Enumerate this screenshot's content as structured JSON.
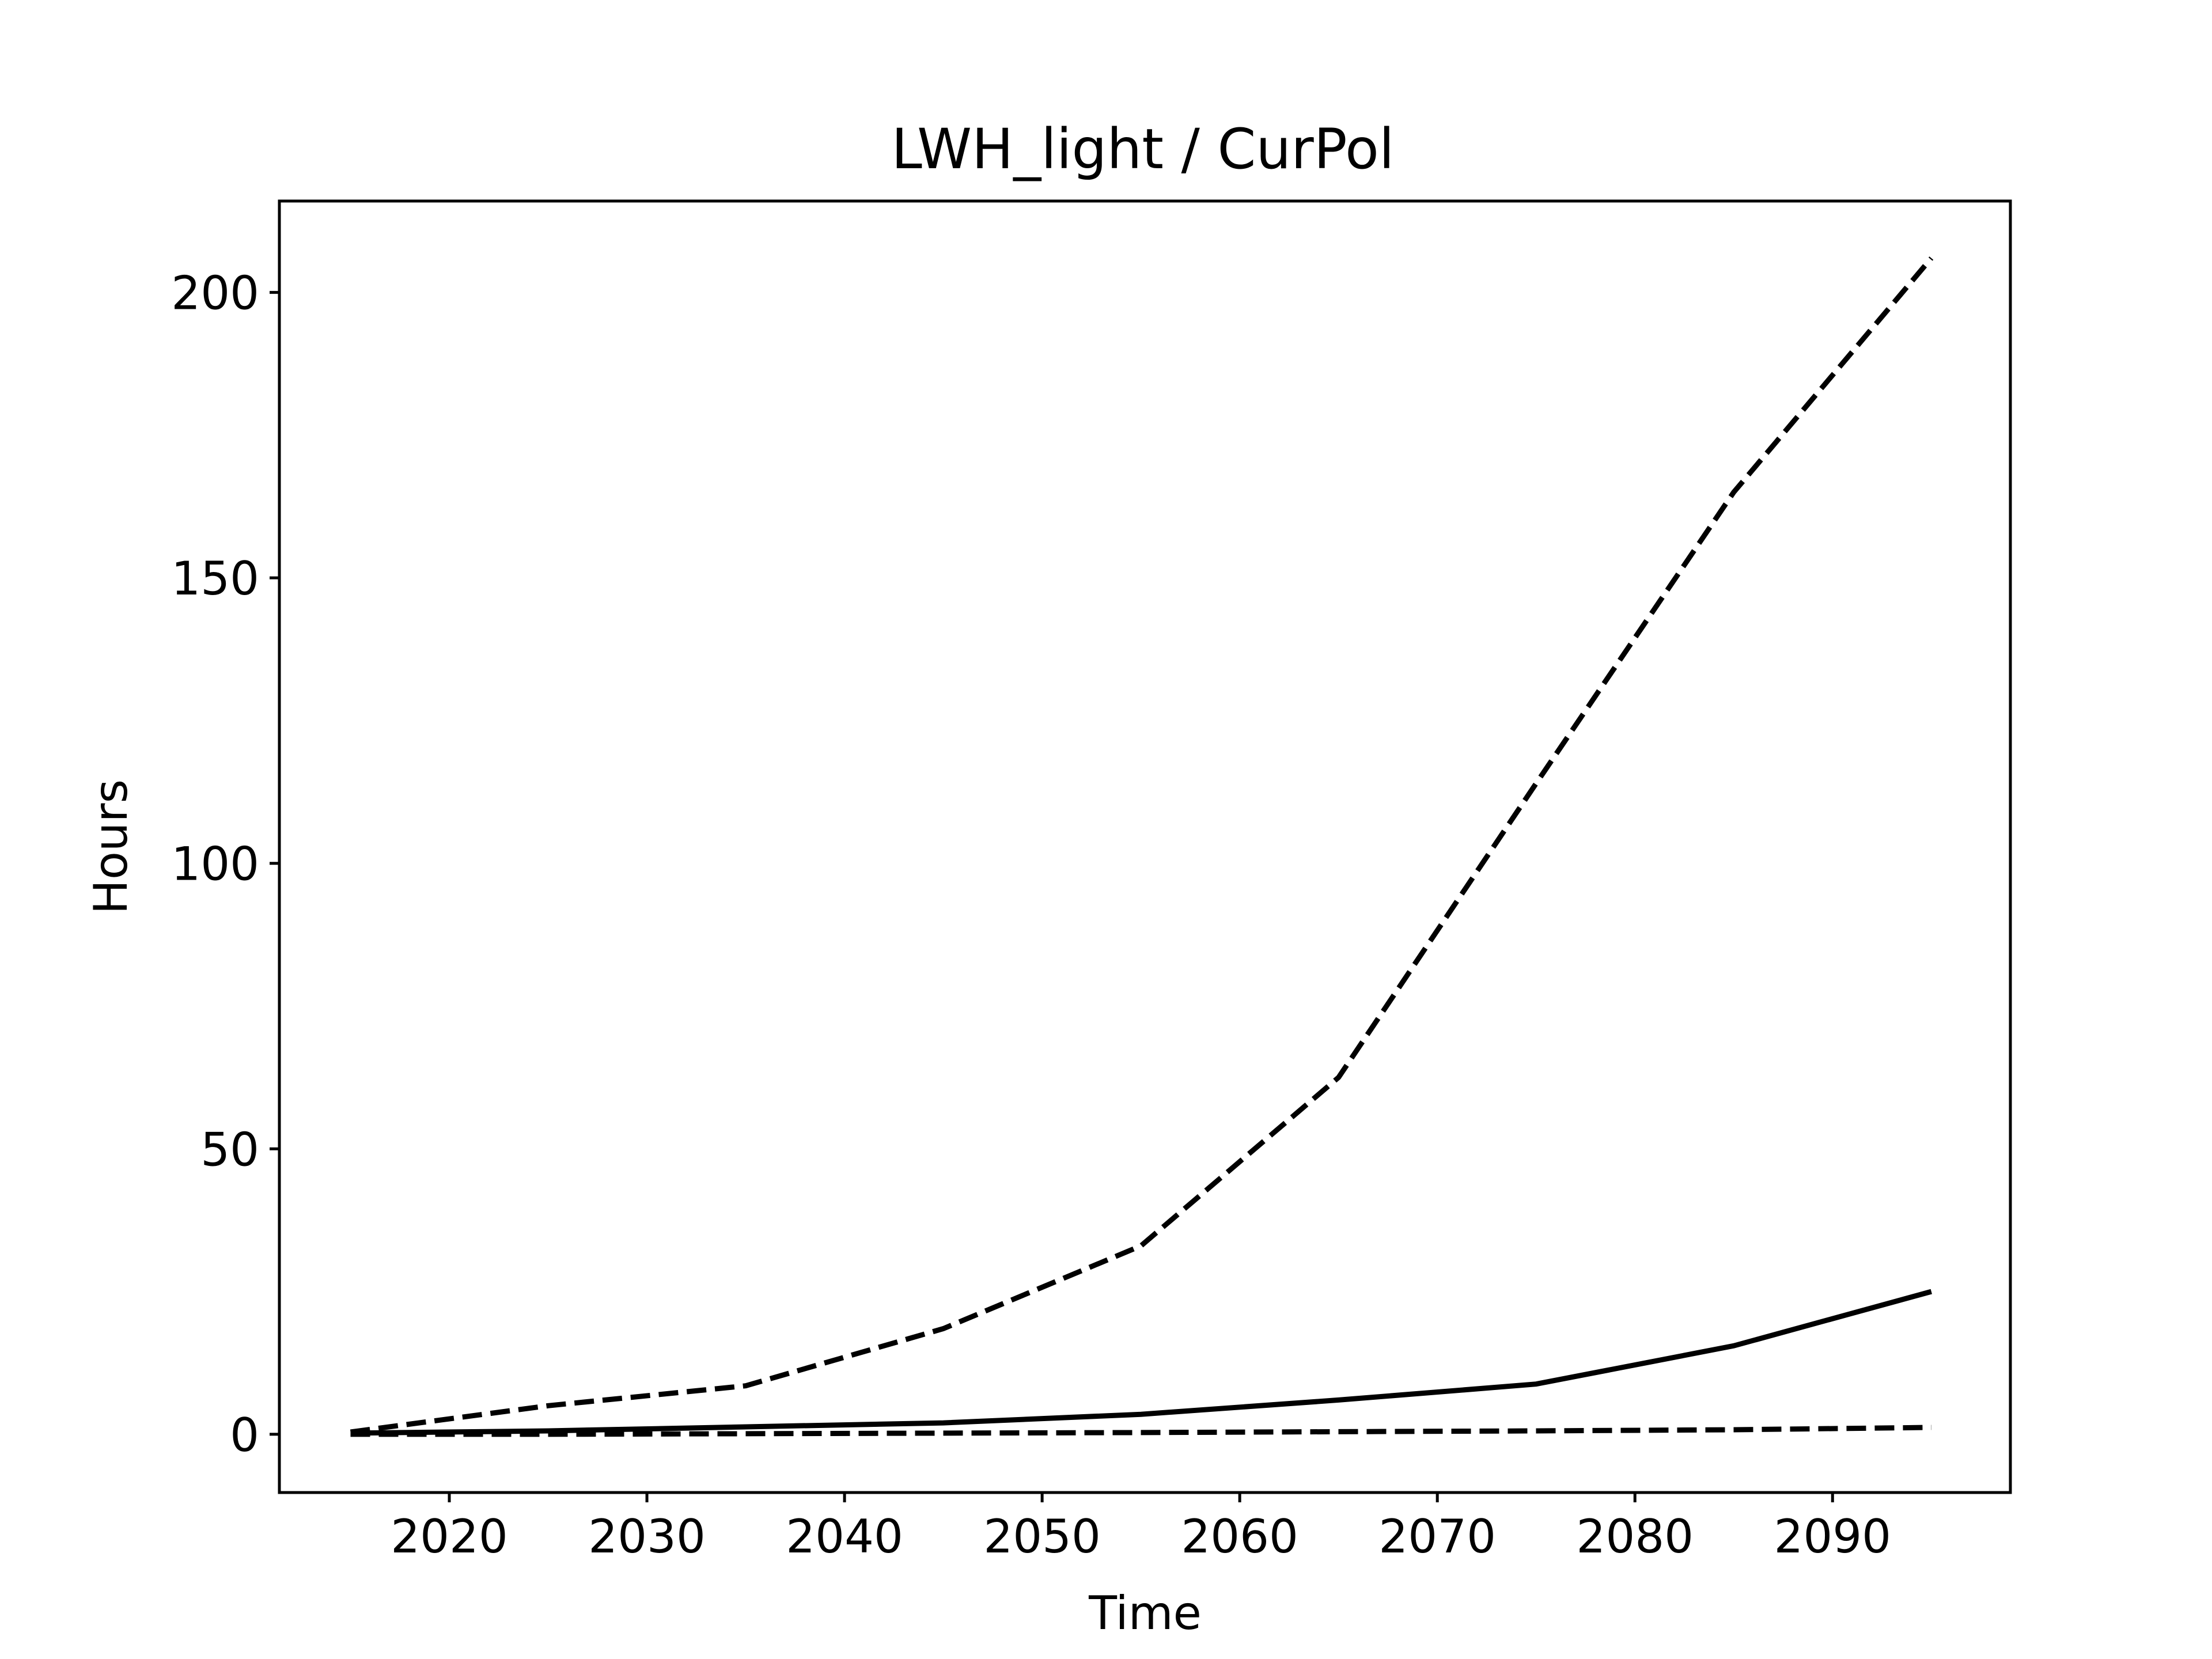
{
  "chart_data": {
    "type": "line",
    "title": "LWH_light / CurPol",
    "xlabel": "Time",
    "ylabel": "Hours",
    "xlim": [
      2011.4,
      2099.0
    ],
    "ylim": [
      -10.2,
      216.0
    ],
    "xticks": [
      2020,
      2030,
      2040,
      2050,
      2060,
      2070,
      2080,
      2090
    ],
    "yticks": [
      0,
      50,
      100,
      150,
      200
    ],
    "grid": false,
    "legend": "none",
    "x": [
      2015,
      2025,
      2035,
      2045,
      2055,
      2065,
      2075,
      2085,
      2095
    ],
    "series": [
      {
        "style": "dashed",
        "color": "#000000",
        "values": [
          0.4,
          5.0,
          8.5,
          18.5,
          33.0,
          62.5,
          114.0,
          165.0,
          206.0
        ]
      },
      {
        "style": "solid",
        "color": "#000000",
        "values": [
          0.2,
          0.6,
          1.3,
          2.0,
          3.5,
          6.0,
          8.8,
          15.5,
          25.0
        ]
      },
      {
        "style": "dashed",
        "color": "#000000",
        "values": [
          0.0,
          0.0,
          0.1,
          0.2,
          0.3,
          0.45,
          0.6,
          0.8,
          1.2
        ]
      }
    ]
  }
}
